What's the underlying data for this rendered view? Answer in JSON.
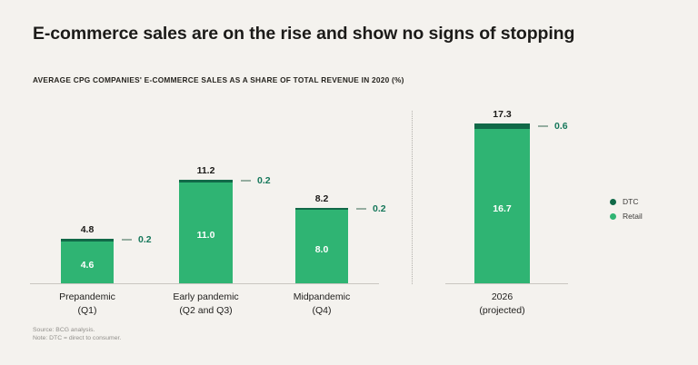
{
  "header": {
    "title": "E-commerce sales are on the rise and show no signs of stopping",
    "subtitle": "AVERAGE CPG COMPANIES' E-COMMERCE SALES AS A SHARE OF TOTAL REVENUE IN 2020 (%)"
  },
  "chart_data": {
    "type": "bar",
    "stacked": true,
    "title": "AVERAGE CPG COMPANIES' E-COMMERCE SALES AS A SHARE OF TOTAL REVENUE IN 2020 (%)",
    "unit": "percent of total revenue",
    "categories": [
      "Prepandemic (Q1)",
      "Early pandemic (Q2 and Q3)",
      "Midpandemic (Q4)",
      "2026 (projected)"
    ],
    "series": [
      {
        "name": "DTC",
        "color": "#116948",
        "values": [
          0.2,
          0.2,
          0.2,
          0.6
        ]
      },
      {
        "name": "Retail",
        "color": "#2fb473",
        "values": [
          4.6,
          11.0,
          8.0,
          16.7
        ]
      }
    ],
    "totals": [
      4.8,
      11.2,
      8.2,
      17.3
    ],
    "ylim": [
      0,
      18
    ],
    "grid": false,
    "legend_position": "right",
    "bars": [
      {
        "cat_line1": "Prepandemic",
        "cat_line2": "(Q1)",
        "total": 4.8,
        "dtc": 0.2,
        "retail": 4.6,
        "total_label": "4.8",
        "dtc_label": "0.2",
        "retail_label": "4.6"
      },
      {
        "cat_line1": "Early pandemic",
        "cat_line2": "(Q2 and Q3)",
        "total": 11.2,
        "dtc": 0.2,
        "retail": 11.0,
        "total_label": "11.2",
        "dtc_label": "0.2",
        "retail_label": "11.0"
      },
      {
        "cat_line1": "Midpandemic",
        "cat_line2": "(Q4)",
        "total": 8.2,
        "dtc": 0.2,
        "retail": 8.0,
        "total_label": "8.2",
        "dtc_label": "0.2",
        "retail_label": "8.0"
      },
      {
        "cat_line1": "2026",
        "cat_line2": "(projected)",
        "total": 17.3,
        "dtc": 0.6,
        "retail": 16.7,
        "total_label": "17.3",
        "dtc_label": "0.6",
        "retail_label": "16.7"
      }
    ]
  },
  "legend": {
    "items": [
      {
        "label": "DTC",
        "color": "#116948"
      },
      {
        "label": "Retail",
        "color": "#2fb473"
      }
    ]
  },
  "footer": {
    "source": "Source: BCG analysis.",
    "note": "Note: DTC = direct to consumer."
  },
  "colors": {
    "background": "#f4f2ee",
    "retail_green": "#2fb473",
    "dtc_green": "#116948",
    "callout_text": "#15775a",
    "baseline": "#c9c6c1"
  }
}
